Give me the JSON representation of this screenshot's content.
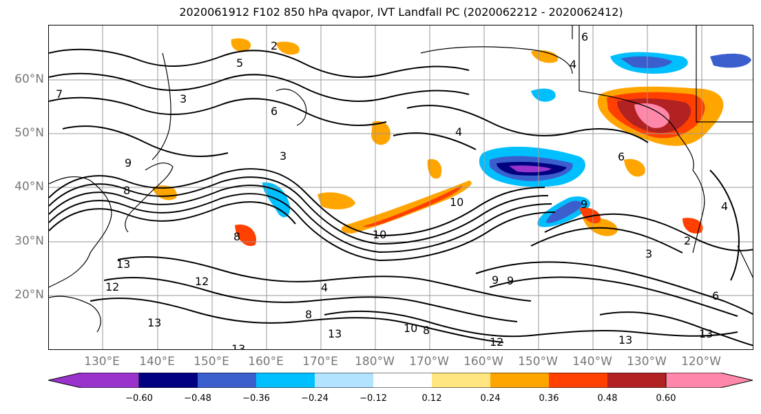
{
  "title": "2020061912 F102 850 hPa qvapor, IVT Landfall PC (2020062212 - 2020062412)",
  "lat_labels": [
    "60°N",
    "50°N",
    "40°N",
    "30°N",
    "20°N"
  ],
  "lon_labels": [
    "130°E",
    "140°E",
    "150°E",
    "160°E",
    "170°E",
    "180°W",
    "170°W",
    "160°W",
    "150°W",
    "140°W",
    "130°W",
    "120°W"
  ],
  "contour_labels": [
    "2",
    "6",
    "7",
    "3",
    "6",
    "3",
    "4",
    "4",
    "8",
    "9",
    "8",
    "13",
    "12",
    "12",
    "13",
    "13",
    "8",
    "9",
    "13",
    "10",
    "10",
    "8",
    "4",
    "9",
    "9",
    "12",
    "10",
    "13",
    "13",
    "6",
    "6",
    "3",
    "2",
    "4",
    "5"
  ],
  "colorbar": {
    "colors": [
      "#9933cc",
      "#000080",
      "#3a5fcd",
      "#00bfff",
      "#b2e4ff",
      "#ffffff",
      "#ffe680",
      "#ffa500",
      "#ff4000",
      "#b22222",
      "#ff88aa"
    ],
    "ticks": [
      "−0.60",
      "−0.48",
      "−0.36",
      "−0.24",
      "−0.12",
      "0.12",
      "0.24",
      "0.36",
      "0.48",
      "0.60"
    ]
  },
  "colors": {
    "frame": "#000000",
    "grid": "#999999",
    "axis_label": "#777777"
  }
}
